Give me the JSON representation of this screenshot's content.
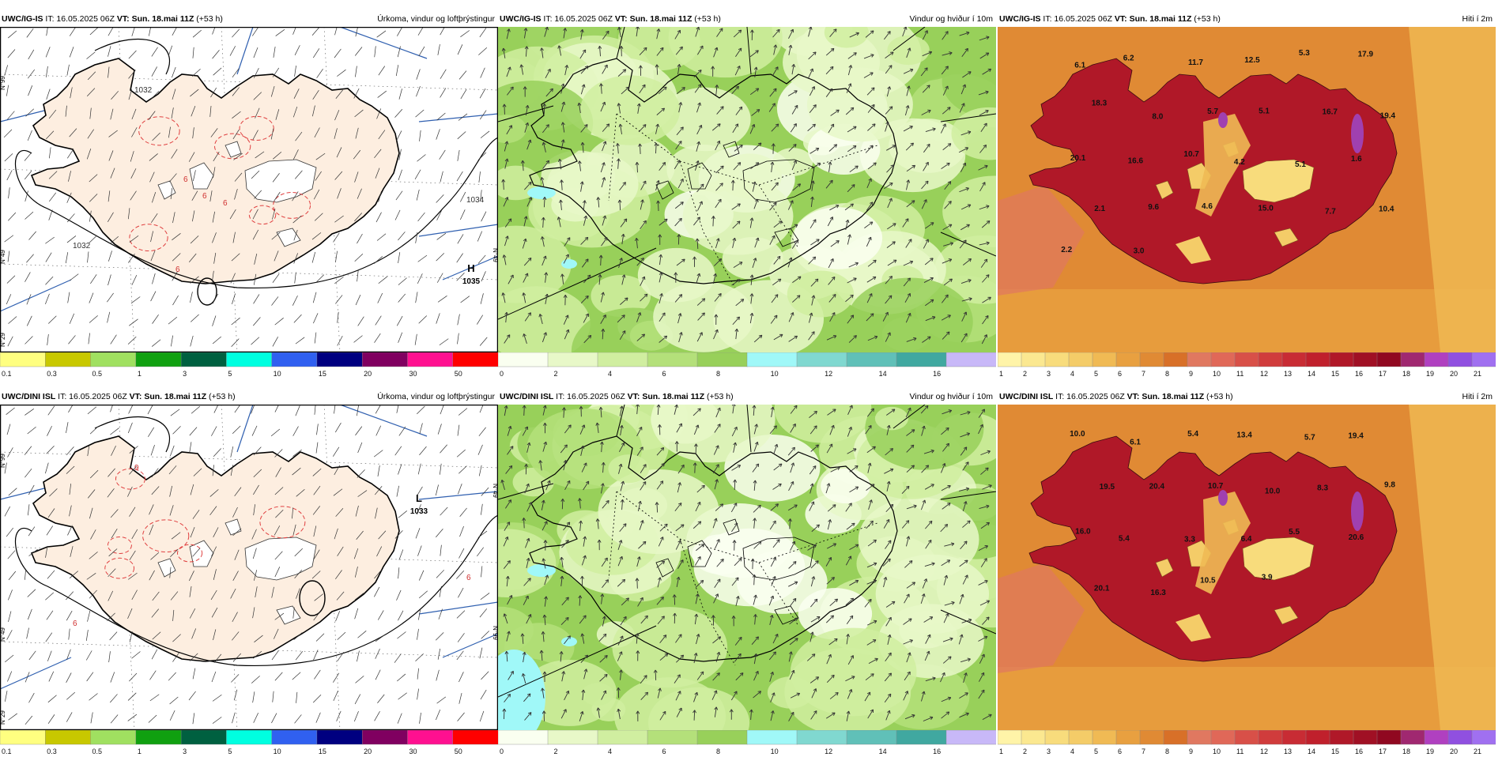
{
  "panels": [
    {
      "id": "p1",
      "row": 0,
      "col": 0,
      "kind": "precip",
      "model": "UWC/IG-IS",
      "it_label": "IT:",
      "it": "16.05.2025 06Z",
      "vt_label": "VT:",
      "vt": "Sun. 18.mai 11Z",
      "lead": "(+53 h)",
      "title": "Úrkoma, vindur og loftþrýstingur",
      "pressure_labels": [
        "1032",
        "1034",
        "1032",
        "6",
        "6",
        "6",
        "6"
      ],
      "center_letter": "H",
      "center_value": "1035",
      "lat_labels": [
        "N°99",
        "N°49",
        "N°29"
      ],
      "lat_labels_right": [
        "N°49"
      ]
    },
    {
      "id": "p2",
      "row": 0,
      "col": 1,
      "kind": "wind",
      "model": "UWC/IG-IS",
      "it_label": "IT:",
      "it": "16.05.2025 06Z",
      "vt_label": "VT:",
      "vt": "Sun. 18.mai 11Z",
      "lead": "(+53 h)",
      "title": "Vindur og hviður í 10m"
    },
    {
      "id": "p3",
      "row": 0,
      "col": 2,
      "kind": "temp",
      "model": "UWC/IG-IS",
      "it_label": "IT:",
      "it": "16.05.2025 06Z",
      "vt_label": "VT:",
      "vt": "Sun. 18.mai 11Z",
      "lead": "(+53 h)",
      "title": "Hiti í 2m",
      "temps": [
        "6.1",
        "6.2",
        "11.7",
        "12.5",
        "5.3",
        "17.9",
        "18.3",
        "8.0",
        "5.7",
        "5.1",
        "16.7",
        "19.4",
        "20.1",
        "16.6",
        "10.7",
        "4.2",
        "5.1",
        "1.6",
        "2.1",
        "9.6",
        "4.6",
        "15.0",
        "7.7",
        "10.4",
        "2.2",
        "3.0"
      ]
    },
    {
      "id": "p4",
      "row": 1,
      "col": 0,
      "kind": "precip",
      "model": "UWC/DINI ISL",
      "it_label": "IT:",
      "it": "16.05.2025 06Z",
      "vt_label": "VT:",
      "vt": "Sun. 18.mai 11Z",
      "lead": "(+53 h)",
      "title": "Úrkoma, vindur og loftþrýstingur",
      "pressure_labels": [
        "9",
        "6",
        "6"
      ],
      "center_letter": "L",
      "center_value": "1033",
      "lat_labels": [
        "N°99",
        "N°49",
        "N°29"
      ],
      "lat_labels_right": [
        "N°99",
        "N°49"
      ]
    },
    {
      "id": "p5",
      "row": 1,
      "col": 1,
      "kind": "wind",
      "model": "UWC/DINI ISL",
      "it_label": "IT:",
      "it": "16.05.2025 06Z",
      "vt_label": "VT:",
      "vt": "Sun. 18.mai 11Z",
      "lead": "(+53 h)",
      "title": "Vindur og hviður í 10m"
    },
    {
      "id": "p6",
      "row": 1,
      "col": 2,
      "kind": "temp",
      "model": "UWC/DINI ISL",
      "it_label": "IT:",
      "it": "16.05.2025 06Z",
      "vt_label": "VT:",
      "vt": "Sun. 18.mai 11Z",
      "lead": "(+53 h)",
      "title": "Hiti í 2m",
      "temps": [
        "10.0",
        "6.1",
        "5.4",
        "13.4",
        "5.7",
        "19.4",
        "19.5",
        "20.4",
        "10.7",
        "10.0",
        "8.3",
        "9.8",
        "16.0",
        "5.4",
        "3.3",
        "6.4",
        "5.5",
        "20.6",
        "20.1",
        "16.3",
        "10.5",
        "3.9"
      ]
    }
  ],
  "colorbars": {
    "precip": {
      "labels": [
        "0.1",
        "0.3",
        "0.5",
        "1",
        "3",
        "5",
        "10",
        "15",
        "20",
        "30",
        "50"
      ],
      "colors": [
        "#ffff80",
        "#c8c800",
        "#a0e060",
        "#10a010",
        "#006040",
        "#00ffe0",
        "#3060f0",
        "#000080",
        "#800060",
        "#ff1090",
        "#ff0000"
      ]
    },
    "wind": {
      "labels": [
        "0",
        "2",
        "4",
        "6",
        "8",
        "10",
        "12",
        "14",
        "16"
      ],
      "colors": [
        "#fafff0",
        "#e8f8c8",
        "#d0eea0",
        "#b4e07a",
        "#98d05a",
        "#a0f8f8",
        "#80d8d0",
        "#60c0b8",
        "#40a8a0",
        "#c8b8f8"
      ]
    },
    "temp": {
      "labels": [
        "1",
        "2",
        "3",
        "4",
        "5",
        "6",
        "7",
        "8",
        "9",
        "10",
        "11",
        "12",
        "13",
        "14",
        "15",
        "16",
        "17",
        "18",
        "19",
        "20",
        "21"
      ],
      "colors": [
        "#fff4a8",
        "#fbe890",
        "#f8dc7c",
        "#f4cc68",
        "#f0ba54",
        "#e8a040",
        "#e08a34",
        "#d87028",
        "#e07860",
        "#e06858",
        "#d85048",
        "#d03c3c",
        "#c82c34",
        "#c0202c",
        "#b01828",
        "#a01024",
        "#900820",
        "#a02870",
        "#b040c0",
        "#9050e0",
        "#a070f0"
      ]
    }
  },
  "colors": {
    "land_precip": "#fdeee0",
    "coast": "#000000",
    "isobar": "#000000",
    "precip_contour": "#e04040",
    "meridian": "#3060b0",
    "frame": "#000000"
  }
}
